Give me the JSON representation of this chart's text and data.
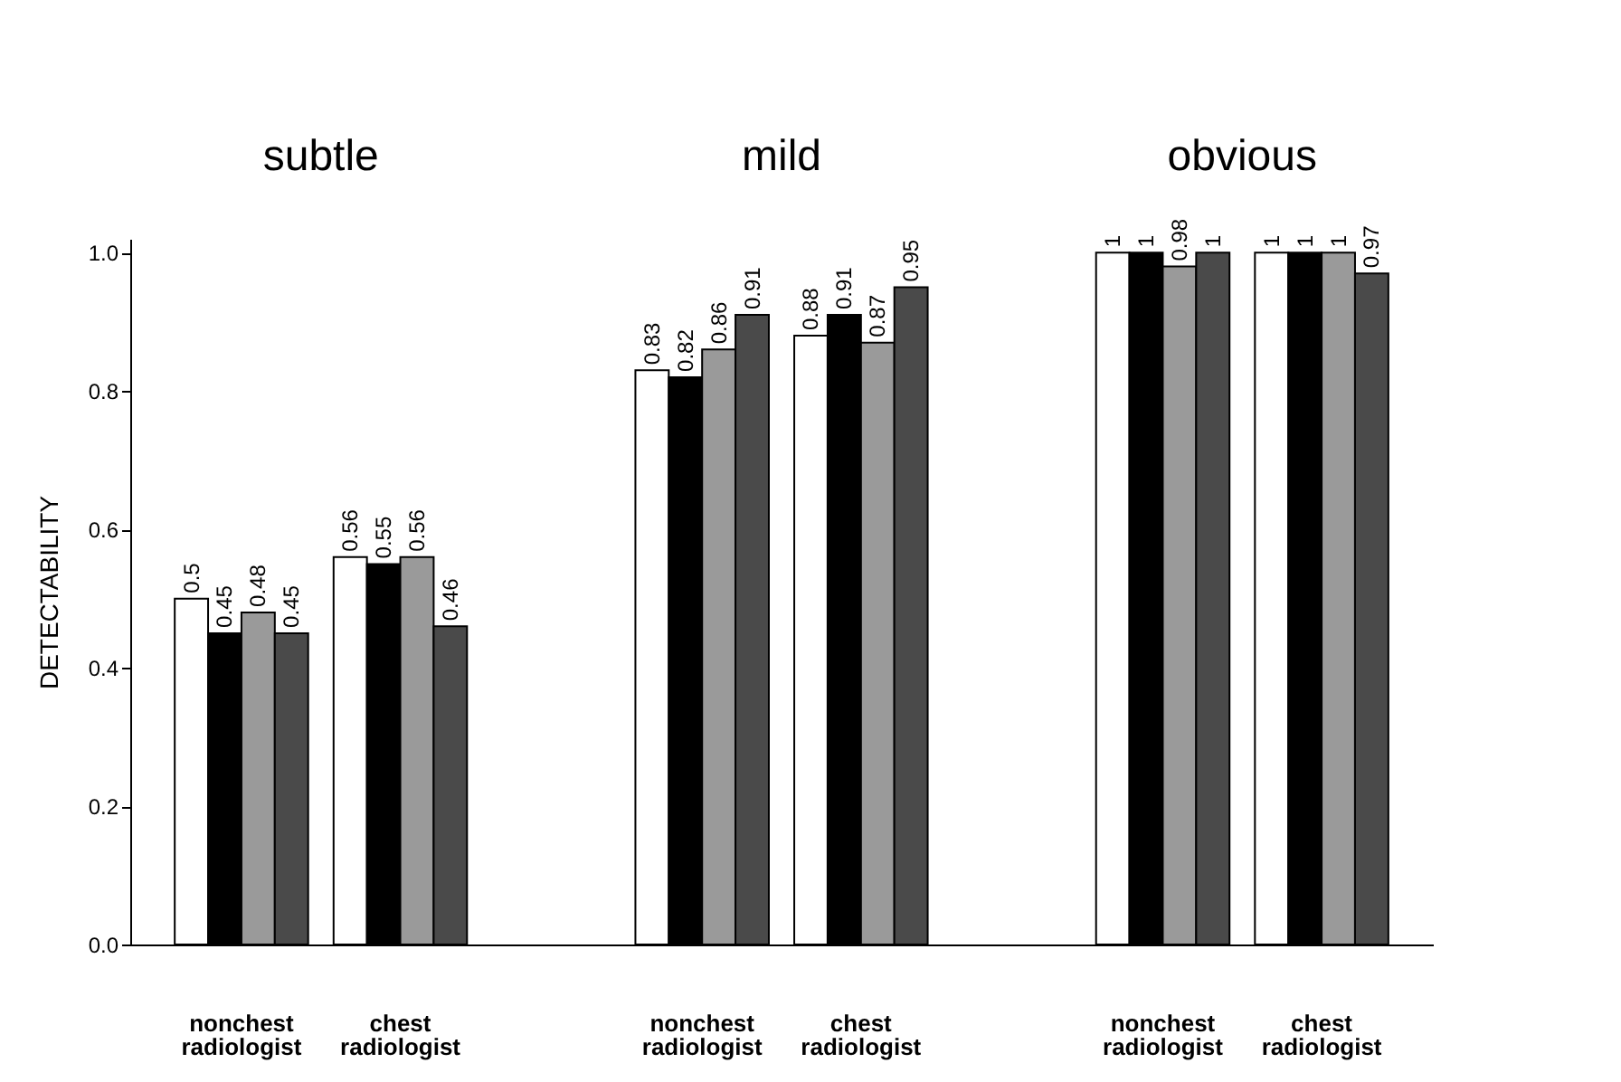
{
  "chart_data": {
    "type": "bar",
    "ylabel": "DETECTABILITY",
    "categories": [
      "nonchest radiologist",
      "chest radiologist",
      "nonchest radiologist",
      "chest radiologist",
      "nonchest radiologist",
      "chest radiologist"
    ],
    "series": [
      {
        "color": "#ffffff",
        "values": [
          0.5,
          0.56,
          0.83,
          0.88,
          1,
          1
        ]
      },
      {
        "color": "#000000",
        "values": [
          0.45,
          0.55,
          0.82,
          0.91,
          1,
          1
        ]
      },
      {
        "color": "#9a9a9a",
        "values": [
          0.48,
          0.56,
          0.86,
          0.87,
          0.98,
          1
        ]
      },
      {
        "color": "#4a4a4a",
        "values": [
          0.45,
          0.46,
          0.91,
          0.95,
          1,
          0.97
        ]
      }
    ],
    "ylim": [
      0,
      1.02
    ],
    "yticks": [
      {
        "value": 0,
        "label": "0.0"
      },
      0.2,
      0.4,
      0.6,
      0.8,
      {
        "value": 1,
        "label": "1.0"
      }
    ],
    "data_labels": true,
    "grid": false,
    "annotations": [
      "subtle",
      "mild",
      "obvious"
    ]
  }
}
